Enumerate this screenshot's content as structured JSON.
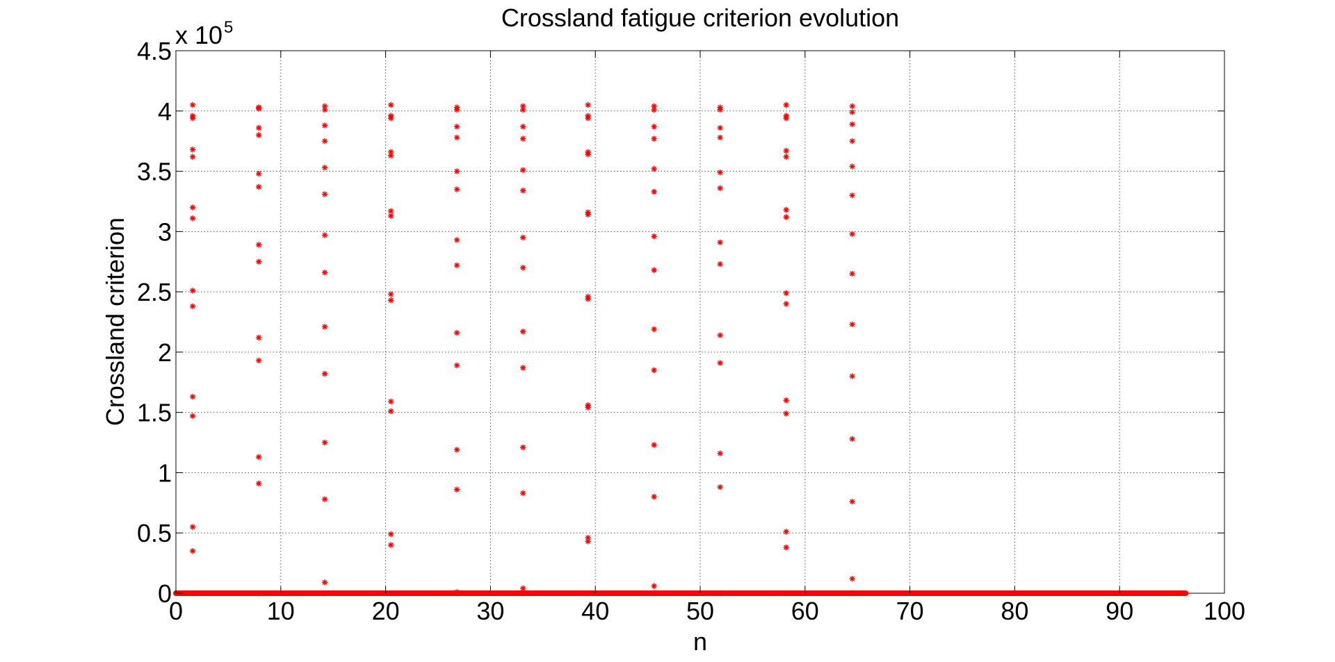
{
  "chart_data": {
    "type": "scatter",
    "title": "Crossland fatigue criterion evolution",
    "xlabel": "n",
    "ylabel": "Crossland criterion",
    "y_scale_label": {
      "base": "x 10",
      "exponent": "5"
    },
    "xlim": [
      0,
      100
    ],
    "ylim": [
      0,
      4.5
    ],
    "x_ticks": [
      0,
      10,
      20,
      30,
      40,
      50,
      60,
      70,
      80,
      90,
      100
    ],
    "x_tick_labels": [
      "0",
      "10",
      "20",
      "30",
      "40",
      "50",
      "60",
      "70",
      "80",
      "90",
      "100"
    ],
    "y_ticks": [
      0,
      0.5,
      1,
      1.5,
      2,
      2.5,
      3,
      3.5,
      4,
      4.5
    ],
    "y_tick_labels": [
      "0",
      "0.5",
      "1",
      "1.5",
      "2",
      "2.5",
      "3",
      "3.5",
      "4",
      "4.5"
    ],
    "grid": true,
    "grid_style": "dotted",
    "marker": "*",
    "marker_color": "#ff0000",
    "baseline": {
      "y": 0,
      "x_range": [
        0,
        96.3
      ],
      "color": "#ff0000"
    },
    "columns": [
      {
        "x": 1.6,
        "y": [
          4.05,
          3.96,
          3.94,
          3.68,
          3.62,
          3.2,
          3.11,
          2.51,
          2.38,
          1.63,
          1.47,
          0.55,
          0.35,
          0
        ]
      },
      {
        "x": 7.9,
        "y": [
          4.03,
          4.02,
          3.86,
          3.8,
          3.48,
          3.37,
          2.89,
          2.75,
          2.12,
          1.93,
          1.13,
          0.91,
          0
        ]
      },
      {
        "x": 14.2,
        "y": [
          4.04,
          4.01,
          3.88,
          3.75,
          3.53,
          3.31,
          2.97,
          2.66,
          2.21,
          1.82,
          1.25,
          0.78,
          0.09,
          0
        ]
      },
      {
        "x": 20.5,
        "y": [
          4.05,
          3.96,
          3.94,
          3.66,
          3.63,
          3.17,
          3.13,
          2.48,
          2.43,
          1.59,
          1.51,
          0.49,
          0.4,
          0
        ]
      },
      {
        "x": 26.8,
        "y": [
          4.03,
          4.01,
          3.87,
          3.78,
          3.5,
          3.35,
          2.93,
          2.72,
          2.16,
          1.89,
          1.19,
          0.86,
          0.01,
          0
        ]
      },
      {
        "x": 33.1,
        "y": [
          4.04,
          4.01,
          3.87,
          3.77,
          3.51,
          3.34,
          2.95,
          2.7,
          2.17,
          1.87,
          1.21,
          0.83,
          0.04,
          0
        ]
      },
      {
        "x": 39.3,
        "y": [
          4.05,
          3.96,
          3.94,
          3.66,
          3.64,
          3.16,
          3.14,
          2.46,
          2.44,
          1.56,
          1.54,
          0.46,
          0.43,
          0
        ]
      },
      {
        "x": 45.6,
        "y": [
          4.04,
          4.01,
          3.87,
          3.77,
          3.52,
          3.33,
          2.96,
          2.68,
          2.19,
          1.85,
          1.23,
          0.8,
          0.06,
          0
        ]
      },
      {
        "x": 51.9,
        "y": [
          4.03,
          4.01,
          3.86,
          3.78,
          3.49,
          3.36,
          2.91,
          2.73,
          2.14,
          1.91,
          1.16,
          0.88,
          0
        ]
      },
      {
        "x": 58.2,
        "y": [
          4.05,
          3.96,
          3.94,
          3.67,
          3.62,
          3.18,
          3.12,
          2.49,
          2.4,
          1.6,
          1.49,
          0.51,
          0.38,
          0
        ]
      },
      {
        "x": 64.5,
        "y": [
          4.04,
          3.99,
          3.89,
          3.75,
          3.54,
          3.3,
          2.98,
          2.65,
          2.23,
          1.8,
          1.28,
          0.76,
          0.12,
          0
        ]
      }
    ]
  }
}
